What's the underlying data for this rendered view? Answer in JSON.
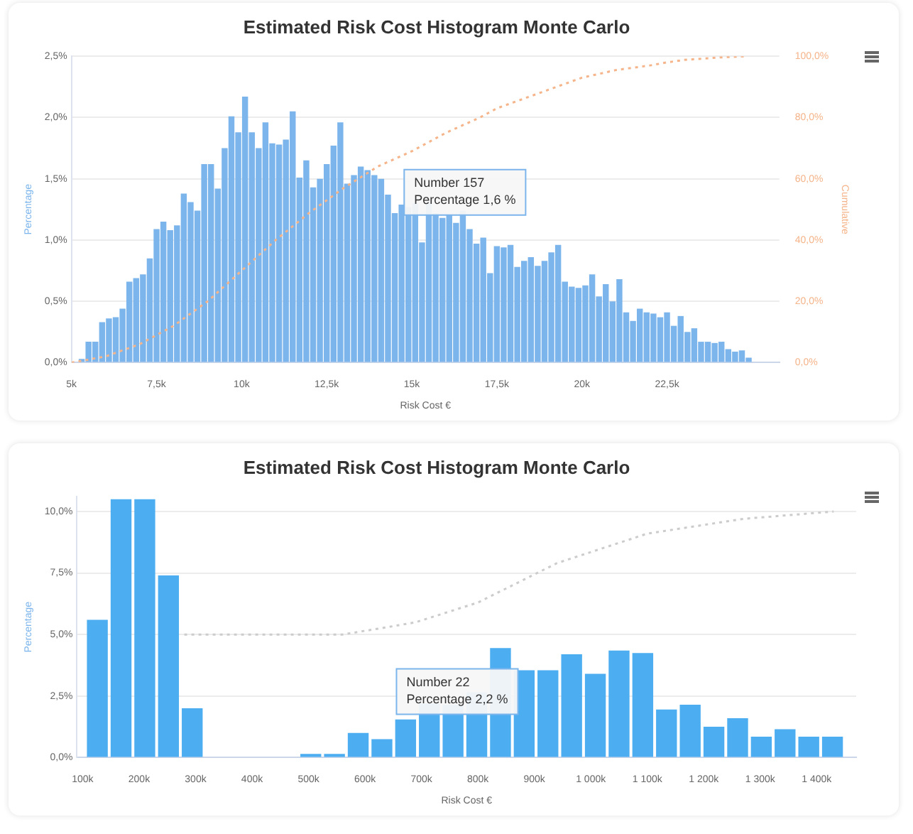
{
  "chart_data": [
    {
      "type": "histogram",
      "title": "Estimated Risk Cost Histogram Monte Carlo",
      "xlabel": "Risk Cost €",
      "ylabel": "Percentage",
      "y2label": "Cumulative",
      "bins": [
        5200,
        5400,
        5600,
        5800,
        6000,
        6200,
        6400,
        6600,
        6800,
        7000,
        7200,
        7400,
        7600,
        7800,
        8000,
        8200,
        8400,
        8600,
        8800,
        9000,
        9200,
        9400,
        9600,
        9800,
        10000,
        10200,
        10400,
        10600,
        10800,
        11000,
        11200,
        11400,
        11600,
        11800,
        12000,
        12200,
        12400,
        12600,
        12800,
        13000,
        13200,
        13400,
        13600,
        13800,
        14000,
        14200,
        14400,
        14600,
        14800,
        15000,
        15200,
        15400,
        15600,
        15800,
        16000,
        16200,
        16400,
        16600,
        16800,
        17000,
        17200,
        17400,
        17600,
        17800,
        18000,
        18200,
        18400,
        18600,
        18800,
        19000,
        19200,
        19400,
        19600,
        19800,
        20000,
        20200,
        20400,
        20600,
        20800,
        21000,
        21200,
        21400,
        21600,
        21800,
        22000,
        22200,
        22400,
        22600,
        22800,
        23000,
        23200,
        23400,
        23600,
        23800,
        24000,
        24200,
        24400,
        24600,
        24800,
        25000
      ],
      "values": [
        0.03,
        0.17,
        0.17,
        0.33,
        0.36,
        0.37,
        0.44,
        0.66,
        0.69,
        0.72,
        0.85,
        1.09,
        1.15,
        1.08,
        1.12,
        1.38,
        1.31,
        1.24,
        1.62,
        1.62,
        1.42,
        1.75,
        2.01,
        1.88,
        2.17,
        1.88,
        1.75,
        1.96,
        1.79,
        1.78,
        1.82,
        2.05,
        1.51,
        1.65,
        1.43,
        1.5,
        1.62,
        1.77,
        1.96,
        1.46,
        1.53,
        1.6,
        1.57,
        1.53,
        1.5,
        1.37,
        1.22,
        1.29,
        1.27,
        1.3,
        0.98,
        1.31,
        1.22,
        1.18,
        1.21,
        1.14,
        1.24,
        1.09,
        0.97,
        1.02,
        0.73,
        0.95,
        0.94,
        0.96,
        0.78,
        0.83,
        0.86,
        0.79,
        0.83,
        0.9,
        0.96,
        0.66,
        0.62,
        0.61,
        0.63,
        0.72,
        0.54,
        0.64,
        0.5,
        0.68,
        0.41,
        0.34,
        0.44,
        0.41,
        0.4,
        0.37,
        0.41,
        0.3,
        0.38,
        0.25,
        0.28,
        0.17,
        0.17,
        0.16,
        0.17,
        0.11,
        0.09,
        0.1,
        0.04
      ],
      "color": "#7cb5ec",
      "series": [
        {
          "type": "line",
          "axis": "y2",
          "color": "#f5b48a",
          "line_style": "dotted",
          "marker": "none",
          "x": [
            5000,
            6000,
            7000,
            8000,
            9000,
            10000,
            11000,
            12000,
            13000,
            14000,
            15000,
            16000,
            17000,
            17500,
            18000,
            19000,
            20000,
            21000,
            22000,
            22500,
            23000,
            24000,
            24800
          ],
          "values": [
            0,
            2,
            6,
            12,
            20,
            30,
            40,
            49,
            57,
            64,
            69,
            75,
            80,
            83,
            85,
            89,
            93,
            95.5,
            97,
            98,
            98.8,
            99.6,
            100
          ]
        }
      ],
      "xlim": [
        5000,
        25800
      ],
      "xticks": [
        {
          "value": 5000,
          "label": "5k"
        },
        {
          "value": 7500,
          "label": "7,5k"
        },
        {
          "value": 10000,
          "label": "10k"
        },
        {
          "value": 12500,
          "label": "12,5k"
        },
        {
          "value": 15000,
          "label": "15k"
        },
        {
          "value": 17500,
          "label": "17,5k"
        },
        {
          "value": 20000,
          "label": "20k"
        },
        {
          "value": 22500,
          "label": "22,5k"
        }
      ],
      "ylim": [
        0,
        2.5
      ],
      "yticks": [
        {
          "value": 0,
          "label": "0,0%"
        },
        {
          "value": 0.5,
          "label": "0,5%"
        },
        {
          "value": 1,
          "label": "1,0%"
        },
        {
          "value": 1.5,
          "label": "1,5%"
        },
        {
          "value": 2,
          "label": "2,0%"
        },
        {
          "value": 2.5,
          "label": "2,5%"
        }
      ],
      "y2lim": [
        0,
        100
      ],
      "y2ticks": [
        {
          "value": 0,
          "label": "0,0%"
        },
        {
          "value": 20,
          "label": "20,0%"
        },
        {
          "value": 40,
          "label": "40,0%"
        },
        {
          "value": 60,
          "label": "60,0%"
        },
        {
          "value": 80,
          "label": "80,0%"
        },
        {
          "value": 100,
          "label": "100,0%"
        }
      ],
      "grid": "y",
      "legend": false,
      "annotations": [
        "Number 157",
        "Percentage 1,6 %"
      ]
    },
    {
      "type": "histogram",
      "title": "Estimated Risk Cost Histogram Monte Carlo",
      "xlabel": "Risk Cost €",
      "ylabel": "Percentage",
      "bins": [
        105000,
        147000,
        189000,
        231000,
        273000,
        315000,
        357000,
        399000,
        441000,
        483000,
        525000,
        567000,
        609000,
        651000,
        693000,
        735000,
        777000,
        819000,
        861000,
        903000,
        945000,
        987000,
        1029000,
        1071000,
        1113000,
        1155000,
        1197000,
        1239000,
        1281000,
        1323000,
        1365000,
        1407000,
        1449000
      ],
      "values": [
        5.6,
        10.5,
        10.5,
        7.4,
        2.0,
        0,
        0,
        0,
        0,
        0.15,
        0.15,
        1.0,
        0.75,
        1.55,
        2.2,
        2.15,
        2.65,
        4.45,
        3.55,
        3.55,
        4.2,
        3.4,
        4.35,
        4.25,
        1.95,
        2.15,
        1.25,
        1.6,
        0.85,
        1.15,
        0.85,
        0.85
      ],
      "color": "#4caef0",
      "series": [
        {
          "type": "line",
          "color": "#cccccc",
          "line_style": "dotted",
          "marker": "none",
          "x": [
            280000,
            560000,
            640000,
            690000,
            800000,
            940000,
            1100000,
            1270000,
            1430000
          ],
          "values": [
            5,
            5,
            5.3,
            5.5,
            6.3,
            7.9,
            9.1,
            9.7,
            10
          ]
        }
      ],
      "xlim": [
        90000,
        1470000
      ],
      "xticks": [
        {
          "value": 100000,
          "label": "100k"
        },
        {
          "value": 200000,
          "label": "200k"
        },
        {
          "value": 300000,
          "label": "300k"
        },
        {
          "value": 400000,
          "label": "400k"
        },
        {
          "value": 500000,
          "label": "500k"
        },
        {
          "value": 600000,
          "label": "600k"
        },
        {
          "value": 700000,
          "label": "700k"
        },
        {
          "value": 800000,
          "label": "800k"
        },
        {
          "value": 900000,
          "label": "900k"
        },
        {
          "value": 1000000,
          "label": "1 000k"
        },
        {
          "value": 1100000,
          "label": "1 100k"
        },
        {
          "value": 1200000,
          "label": "1 200k"
        },
        {
          "value": 1300000,
          "label": "1 300k"
        },
        {
          "value": 1400000,
          "label": "1 400k"
        }
      ],
      "ylim": [
        0,
        10.6
      ],
      "yticks": [
        {
          "value": 0,
          "label": "0,0%"
        },
        {
          "value": 2.5,
          "label": "2,5%"
        },
        {
          "value": 5,
          "label": "5,0%"
        },
        {
          "value": 7.5,
          "label": "7,5%"
        },
        {
          "value": 10,
          "label": "10,0%"
        }
      ],
      "grid": "y",
      "legend": false,
      "annotations": [
        "Number 22",
        "Percentage 2,2 %"
      ]
    }
  ]
}
